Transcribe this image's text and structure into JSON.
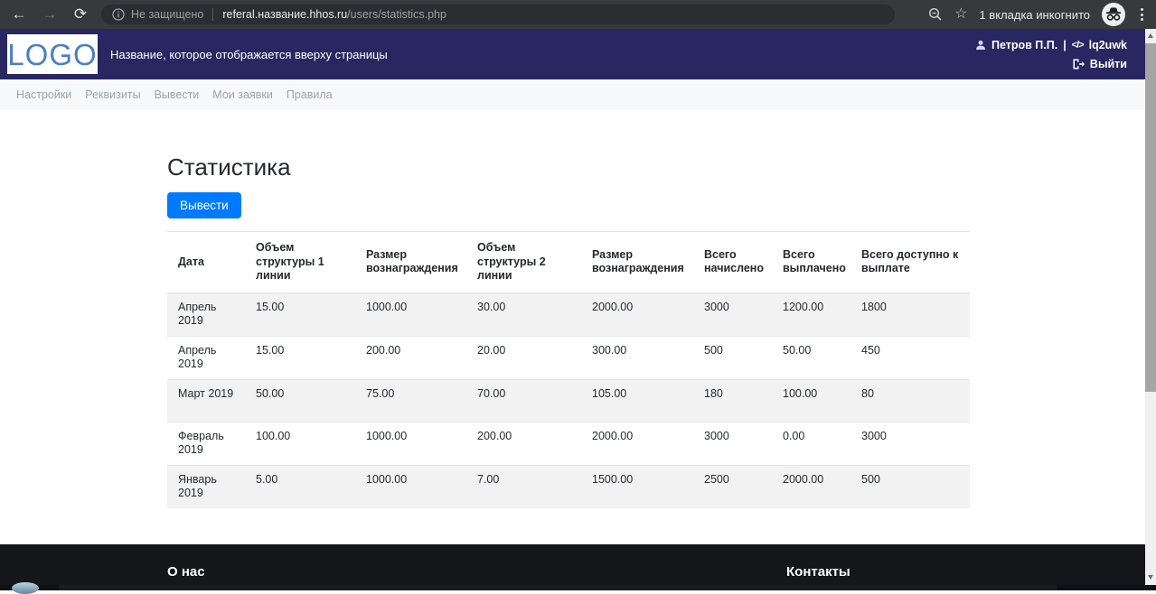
{
  "browser": {
    "back": "←",
    "forward": "→",
    "reload": "⟳",
    "security_label": "Не защищено",
    "url_host": "referal.название.hhos.ru",
    "url_path": "/users/statistics.php",
    "incognito_label": "1 вкладка инкогнито"
  },
  "header": {
    "logo_text": "LOGO",
    "site_title": "Название, которое отображается вверху страницы",
    "user_name": "Петров П.П.",
    "separator": "|",
    "code_icon_glyph": "</>",
    "referral_code": "lq2uwk",
    "logout_label": "Выйти"
  },
  "nav": {
    "items": [
      "Настройки",
      "Реквизиты",
      "Вывести",
      "Мои заявки",
      "Правила"
    ]
  },
  "page": {
    "title": "Статистика",
    "withdraw_button": "Вывести"
  },
  "table": {
    "columns": [
      "Дата",
      "Объем структуры 1 линии",
      "Размер вознаграждения",
      "Объем структуры 2 линии",
      "Размер вознаграждения",
      "Всего начислено",
      "Всего выплачено",
      "Всего доступно к выплате"
    ],
    "rows": [
      [
        "Апрель 2019",
        "15.00",
        "1000.00",
        "30.00",
        "2000.00",
        "3000",
        "1200.00",
        "1800"
      ],
      [
        "Апрель 2019",
        "15.00",
        "200.00",
        "20.00",
        "300.00",
        "500",
        "50.00",
        "450"
      ],
      [
        "Март 2019",
        "50.00",
        "75.00",
        "70.00",
        "105.00",
        "180",
        "100.00",
        "80"
      ],
      [
        "Февраль 2019",
        "100.00",
        "1000.00",
        "200.00",
        "2000.00",
        "3000",
        "0.00",
        "3000"
      ],
      [
        "Январь 2019",
        "5.00",
        "1000.00",
        "7.00",
        "1500.00",
        "2500",
        "2000.00",
        "500"
      ]
    ]
  },
  "footer": {
    "about": "О нас",
    "contacts": "Контакты"
  },
  "colors": {
    "accent": "#007bff",
    "header_bg": "#282761",
    "logo_blue": "#4a7fc4",
    "footer_bg": "#14161a",
    "row_stripe": "#f2f2f2"
  }
}
